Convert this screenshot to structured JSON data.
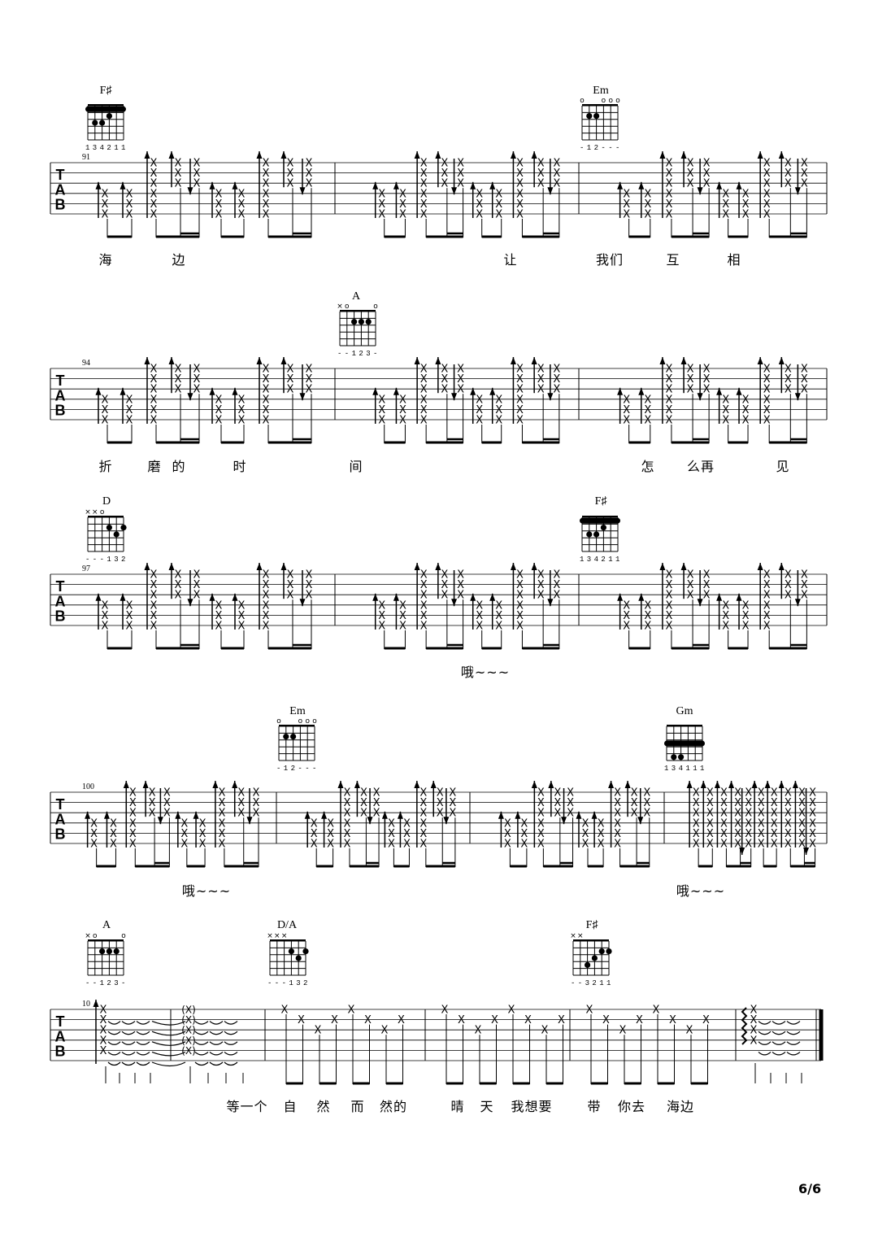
{
  "page_number": "6/6",
  "tab_label": [
    "T",
    "A",
    "B"
  ],
  "systems": [
    {
      "measure_number": "91",
      "chords": [
        {
          "name": "F♯",
          "top": [
            "",
            "",
            "",
            "",
            "",
            ""
          ],
          "fingers": "134211",
          "barre": 1,
          "dots": [
            [
              5,
              3
            ],
            [
              4,
              3
            ],
            [
              3,
              2
            ]
          ]
        },
        {
          "name": "Em",
          "top": [
            "o",
            "",
            "",
            "o",
            "o",
            "o"
          ],
          "fingers": "-12---",
          "barre": 0,
          "dots": [
            [
              5,
              2
            ],
            [
              4,
              2
            ]
          ]
        }
      ],
      "lyrics": [
        "海",
        "边",
        "让",
        "我们",
        "互",
        "相"
      ]
    },
    {
      "measure_number": "94",
      "chords": [
        {
          "name": "A",
          "top": [
            "×",
            "o",
            "",
            "",
            "",
            "o"
          ],
          "fingers": "--123-",
          "barre": 0,
          "dots": [
            [
              4,
              2
            ],
            [
              3,
              2
            ],
            [
              2,
              2
            ]
          ]
        }
      ],
      "lyrics": [
        "折",
        "磨",
        "的",
        "时",
        "间",
        "怎",
        "么再",
        "见"
      ]
    },
    {
      "measure_number": "97",
      "chords": [
        {
          "name": "D",
          "top": [
            "×",
            "×",
            "o",
            "",
            "",
            ""
          ],
          "fingers": "---132",
          "barre": 0,
          "dots": [
            [
              3,
              2
            ],
            [
              1,
              2
            ],
            [
              2,
              3
            ]
          ]
        },
        {
          "name": "F♯",
          "top": [
            "",
            "",
            "",
            "",
            "",
            ""
          ],
          "fingers": "134211",
          "barre": 1,
          "dots": [
            [
              5,
              3
            ],
            [
              4,
              3
            ],
            [
              3,
              2
            ]
          ]
        }
      ],
      "lyrics": [
        "哦~~~"
      ]
    },
    {
      "measure_number": "100",
      "chords": [
        {
          "name": "Em",
          "top": [
            "o",
            "",
            "",
            "o",
            "o",
            "o"
          ],
          "fingers": "-12---",
          "barre": 0,
          "dots": [
            [
              5,
              2
            ],
            [
              4,
              2
            ]
          ]
        },
        {
          "name": "Gm",
          "top": [
            "",
            "",
            "",
            "",
            "",
            ""
          ],
          "fingers": "134111",
          "barre": 3,
          "dots": [
            [
              5,
              5
            ],
            [
              4,
              5
            ]
          ]
        }
      ],
      "lyrics": [
        "哦~~~",
        "哦~~~"
      ]
    },
    {
      "measure_number": "10",
      "chords": [
        {
          "name": "A",
          "top": [
            "×",
            "o",
            "",
            "",
            "",
            "o"
          ],
          "fingers": "--123-",
          "barre": 0,
          "dots": [
            [
              4,
              2
            ],
            [
              3,
              2
            ],
            [
              2,
              2
            ]
          ]
        },
        {
          "name": "D/A",
          "top": [
            "×",
            "×",
            "×",
            "",
            "",
            ""
          ],
          "fingers": "---132",
          "barre": 0,
          "dots": [
            [
              3,
              2
            ],
            [
              1,
              2
            ],
            [
              2,
              3
            ]
          ]
        },
        {
          "name": "F♯",
          "top": [
            "×",
            "×",
            "",
            "",
            "",
            ""
          ],
          "fingers": "--3211",
          "barre": 0,
          "dots": [
            [
              4,
              4
            ],
            [
              3,
              3
            ],
            [
              2,
              2
            ],
            [
              1,
              2
            ]
          ]
        }
      ],
      "lyrics": [
        "等一个",
        "自",
        "然",
        "而",
        "然的",
        "晴",
        "天",
        "我想要",
        "带",
        "你去",
        "海边"
      ]
    }
  ]
}
